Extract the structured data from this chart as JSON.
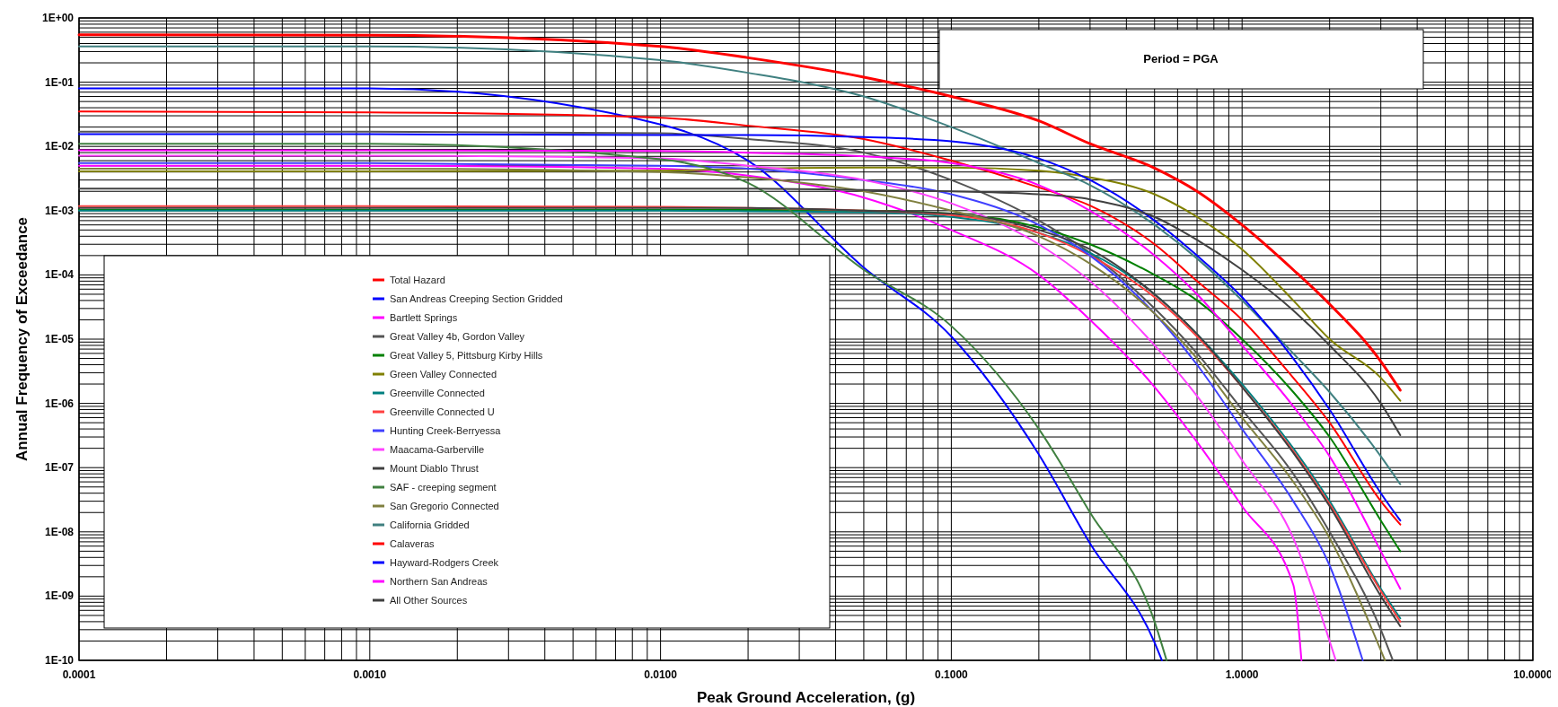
{
  "chart_data": {
    "type": "line",
    "xlabel": "Peak Ground Acceleration, (g)",
    "ylabel": "Annual Frequency of Exceedance",
    "annotations": [
      "Period = PGA"
    ],
    "log": "xy",
    "grid": true,
    "legend": "bottom left",
    "xlim": [
      0.0001,
      10
    ],
    "ylim": [
      1e-10,
      1
    ],
    "xticks": [
      {
        "value": 0.0001,
        "label": "0.0001"
      },
      {
        "value": 0.001,
        "label": "0.0010"
      },
      {
        "value": 0.01,
        "label": "0.0100"
      },
      {
        "value": 0.1,
        "label": "0.1000"
      },
      {
        "value": 1,
        "label": "1.0000"
      },
      {
        "value": 10,
        "label": "10.0000"
      }
    ],
    "yticks": [
      {
        "value": 1e-10,
        "label": "1E-10"
      },
      {
        "value": 1e-09,
        "label": "1E-09"
      },
      {
        "value": 1e-08,
        "label": "1E-08"
      },
      {
        "value": 1e-07,
        "label": "1E-07"
      },
      {
        "value": 1e-06,
        "label": "1E-06"
      },
      {
        "value": 1e-05,
        "label": "1E-05"
      },
      {
        "value": 0.0001,
        "label": "1E-04"
      },
      {
        "value": 0.001,
        "label": "1E-03"
      },
      {
        "value": 0.01,
        "label": "1E-02"
      },
      {
        "value": 0.1,
        "label": "1E-01"
      },
      {
        "value": 1,
        "label": "1E+00"
      }
    ],
    "x": [
      0.0001,
      0.001,
      0.01,
      0.02,
      0.05,
      0.1,
      0.2,
      0.3,
      0.5,
      0.7,
      1,
      1.5,
      2,
      3,
      3.5
    ],
    "series": [
      {
        "name": "Total Hazard",
        "color": "#ff0000",
        "values": [
          0.545,
          0.54,
          0.36,
          0.24,
          0.12,
          0.06,
          0.025,
          0.011,
          0.0046,
          0.002,
          0.0006,
          0.00012,
          3.5e-05,
          4.5e-06,
          1.6e-06
        ]
      },
      {
        "name": "San Andreas Creeping Section Gridded",
        "color": "#0000ff",
        "x": [
          0.0001,
          0.001,
          0.01,
          0.02,
          0.05,
          0.1,
          0.2,
          0.3,
          0.5,
          0.53
        ],
        "values": [
          0.08,
          0.08,
          0.022,
          0.006,
          0.00013,
          1.1e-05,
          1.6e-07,
          6.6e-09,
          1.9e-10,
          1e-10
        ]
      },
      {
        "name": "Bartlett Springs",
        "color": "#ff00ff",
        "x": [
          0.0001,
          0.001,
          0.01,
          0.02,
          0.05,
          0.1,
          0.2,
          0.3,
          0.5,
          0.7,
          1,
          1.5,
          1.6
        ],
        "values": [
          0.005,
          0.005,
          0.0045,
          0.0035,
          0.0016,
          0.0005,
          0.0001,
          2e-05,
          1.8e-06,
          2.5e-07,
          2.5e-08,
          1.5e-09,
          1e-10
        ]
      },
      {
        "name": "Great Valley 4b, Gordon Valley",
        "color": "#555555",
        "x": [
          0.0001,
          0.001,
          0.01,
          0.02,
          0.05,
          0.1,
          0.2,
          0.3,
          0.5,
          0.7,
          1,
          1.5,
          2,
          3,
          3.3
        ],
        "values": [
          0.017,
          0.017,
          0.016,
          0.013,
          0.008,
          0.003,
          0.0007,
          0.00022,
          3e-05,
          6e-06,
          8e-07,
          8e-08,
          1e-08,
          3e-10,
          1e-10
        ]
      },
      {
        "name": "Great Valley 5, Pittsburg Kirby Hills",
        "color": "#008000",
        "values": [
          0.00103,
          0.00103,
          0.00103,
          0.00103,
          0.001,
          0.0009,
          0.00055,
          0.0003,
          0.0001,
          4e-05,
          1e-05,
          1.5e-06,
          3e-07,
          1.5e-08,
          5e-09
        ]
      },
      {
        "name": "Green Valley Connected",
        "color": "#808000",
        "values": [
          0.0041,
          0.0041,
          0.0042,
          0.0045,
          0.0047,
          0.0047,
          0.0042,
          0.0033,
          0.0018,
          0.0008,
          0.00025,
          4e-05,
          1e-05,
          2.5e-06,
          1.1e-06
        ]
      },
      {
        "name": "Greenville Connected",
        "color": "#008080",
        "values": [
          0.001,
          0.001,
          0.001,
          0.00098,
          0.00095,
          0.0008,
          0.00045,
          0.00022,
          5e-05,
          1.2e-05,
          2e-06,
          2e-07,
          3e-08,
          1.3e-09,
          4.5e-10
        ]
      },
      {
        "name": "Greenville Connected U",
        "color": "#ff4040",
        "values": [
          0.00118,
          0.00118,
          0.00115,
          0.0011,
          0.001,
          0.00085,
          0.00045,
          0.0002,
          4.5e-05,
          1.1e-05,
          1.8e-06,
          1.8e-07,
          2.7e-08,
          1.2e-09,
          4e-10
        ]
      },
      {
        "name": "Hunting Creek-Berryessa",
        "color": "#4040ff",
        "x": [
          0.0001,
          0.001,
          0.01,
          0.02,
          0.05,
          0.1,
          0.2,
          0.3,
          0.5,
          0.7,
          1,
          1.5,
          2,
          2.6
        ],
        "values": [
          0.0055,
          0.0055,
          0.005,
          0.0045,
          0.003,
          0.0018,
          0.0006,
          0.0002,
          2.5e-05,
          4e-06,
          4e-07,
          3e-08,
          3e-09,
          1e-10
        ]
      },
      {
        "name": "Maacama-Garberville",
        "color": "#ff40ff",
        "x": [
          0.0001,
          0.001,
          0.01,
          0.02,
          0.05,
          0.1,
          0.2,
          0.3,
          0.5,
          0.7,
          1,
          1.5,
          2,
          2.1
        ],
        "values": [
          0.0072,
          0.0072,
          0.0065,
          0.005,
          0.003,
          0.0013,
          0.0003,
          8e-05,
          8e-06,
          1.3e-06,
          1.3e-07,
          8e-09,
          2e-10,
          1e-10
        ]
      },
      {
        "name": "Mount Diablo Thrust",
        "color": "#404040",
        "values": [
          0.0011,
          0.0011,
          0.0011,
          0.0011,
          0.001,
          0.0009,
          0.0005,
          0.00025,
          5e-05,
          1.2e-05,
          1.8e-06,
          1.7e-07,
          2.5e-08,
          1e-09,
          3.4e-10
        ]
      },
      {
        "name": "SAF - creeping segment",
        "color": "#408040",
        "x": [
          0.0001,
          0.001,
          0.01,
          0.02,
          0.05,
          0.1,
          0.2,
          0.3,
          0.5,
          0.55
        ],
        "values": [
          0.011,
          0.011,
          0.0063,
          0.0027,
          0.00012,
          1.6e-05,
          4e-07,
          2e-08,
          4e-10,
          1e-10
        ]
      },
      {
        "name": "San Gregorio Connected",
        "color": "#808040",
        "x": [
          0.0001,
          0.001,
          0.01,
          0.02,
          0.05,
          0.1,
          0.2,
          0.3,
          0.5,
          0.7,
          1,
          1.5,
          2,
          3.1
        ],
        "values": [
          0.0045,
          0.0045,
          0.004,
          0.0033,
          0.002,
          0.001,
          0.0004,
          0.00015,
          2.5e-05,
          5e-06,
          6e-07,
          6e-08,
          8e-09,
          1e-10
        ]
      },
      {
        "name": "California Gridded",
        "color": "#408080",
        "values": [
          0.36,
          0.36,
          0.22,
          0.14,
          0.06,
          0.02,
          0.0055,
          0.0025,
          0.0006,
          0.00018,
          4e-05,
          6e-06,
          1.5e-06,
          1.5e-07,
          5.5e-08
        ]
      },
      {
        "name": "Calaveras",
        "color": "#ff0000",
        "values": [
          0.035,
          0.034,
          0.028,
          0.021,
          0.013,
          0.006,
          0.0023,
          0.0012,
          0.0003,
          8e-05,
          2e-05,
          2.5e-06,
          5e-07,
          3e-08,
          1.3e-08
        ]
      },
      {
        "name": "Hayward-Rodgers Creek",
        "color": "#0000ff",
        "values": [
          0.0155,
          0.0155,
          0.015,
          0.015,
          0.014,
          0.012,
          0.0065,
          0.003,
          0.0007,
          0.0002,
          4.5e-05,
          5e-06,
          8e-07,
          4e-08,
          1.5e-08
        ]
      },
      {
        "name": "Northern San Andreas",
        "color": "#ff00ff",
        "values": [
          0.0087,
          0.0087,
          0.0085,
          0.008,
          0.007,
          0.0055,
          0.0025,
          0.001,
          0.0002,
          5e-05,
          8e-06,
          9e-07,
          1.5e-07,
          5e-09,
          1.3e-09
        ]
      },
      {
        "name": "All Other Sources",
        "color": "#404040",
        "values": [
          0.0022,
          0.0022,
          0.0022,
          0.0022,
          0.0021,
          0.002,
          0.0018,
          0.0015,
          0.0008,
          0.00035,
          0.00012,
          2.8e-05,
          8e-06,
          1e-06,
          3.2e-07
        ]
      }
    ]
  }
}
